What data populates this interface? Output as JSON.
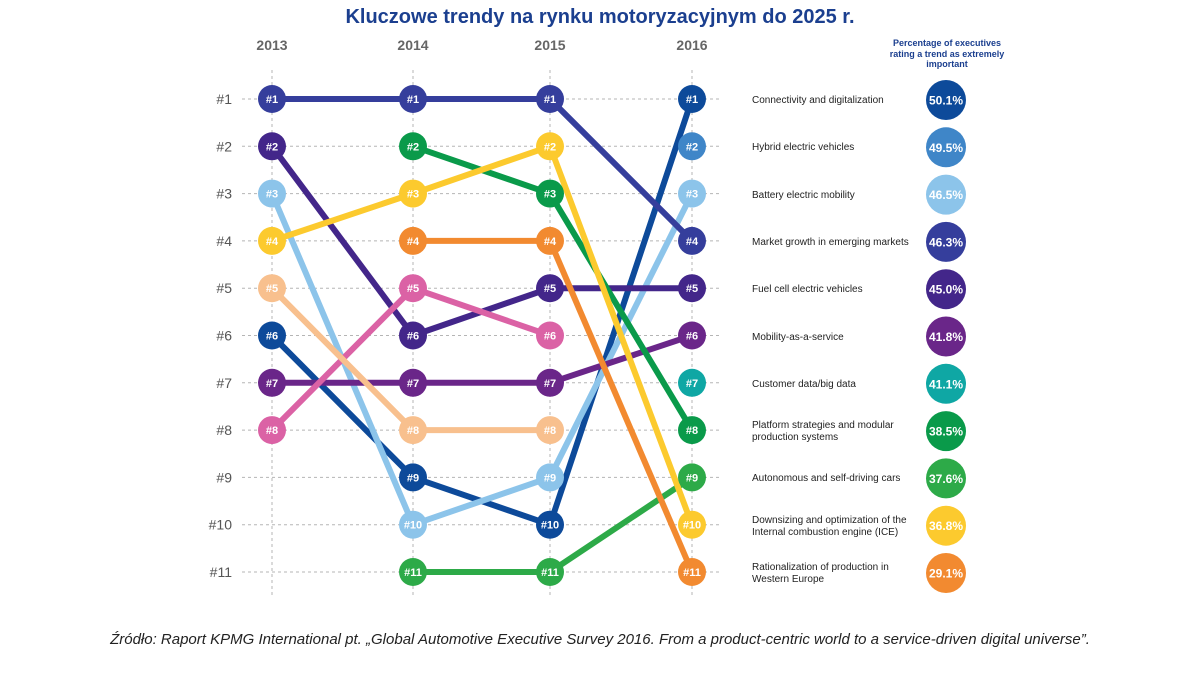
{
  "title": "Kluczowe trendy na rynku motoryzacyjnym do 2025 r.",
  "legend_header": "Percentage of executives rating a trend as extremely important",
  "source": "Źródło: Raport KPMG International pt. „Global Automotive Executive Survey 2016. From a product-centric world to a service-driven digital universe”.",
  "chart_data": {
    "type": "line",
    "subtype": "bump-chart",
    "title": "Kluczowe trendy na rynku motoryzacyjnym do 2025 r.",
    "x": [
      "2013",
      "2014",
      "2015",
      "2016"
    ],
    "y_ticks": [
      "#1",
      "#2",
      "#3",
      "#4",
      "#5",
      "#6",
      "#7",
      "#8",
      "#9",
      "#10",
      "#11"
    ],
    "ylim": [
      1,
      11
    ],
    "y_inverted": true,
    "grid": true,
    "legend_title": "Percentage of executives rating a trend as extremely important",
    "legend_position": "right",
    "series": [
      {
        "name": "Connectivity and digitalization",
        "ranks": [
          6,
          9,
          10,
          1
        ],
        "pct_2016": "50.1%",
        "color": "#0d4a9a"
      },
      {
        "name": "Hybrid electric vehicles",
        "ranks": [
          null,
          null,
          null,
          2
        ],
        "pct_2016": "49.5%",
        "color": "#3f86c8"
      },
      {
        "name": "Battery electric mobility",
        "ranks": [
          3,
          10,
          9,
          3
        ],
        "pct_2016": "46.5%",
        "color": "#8cc4ea"
      },
      {
        "name": "Market growth in emerging markets",
        "ranks": [
          1,
          1,
          1,
          4
        ],
        "pct_2016": "46.3%",
        "color": "#353e9c"
      },
      {
        "name": "Fuel cell electric vehicles",
        "ranks": [
          2,
          6,
          5,
          5
        ],
        "pct_2016": "45.0%",
        "color": "#43268a"
      },
      {
        "name": "Mobility-as-a-service",
        "ranks": [
          7,
          7,
          7,
          6
        ],
        "pct_2016": "41.8%",
        "color": "#6a2689"
      },
      {
        "name": "Customer data/big data",
        "ranks": [
          null,
          null,
          null,
          7
        ],
        "pct_2016": "41.1%",
        "color": "#0fa7a4"
      },
      {
        "name": "Platform strategies and modular production systems",
        "ranks": [
          null,
          2,
          3,
          8
        ],
        "pct_2016": "38.5%",
        "color": "#0a9a4a"
      },
      {
        "name": "Autonomous and self-driving cars",
        "ranks": [
          null,
          11,
          11,
          9
        ],
        "pct_2016": "37.6%",
        "color": "#2daa48"
      },
      {
        "name": "Downsizing and optimization of the Internal combustion engine (ICE)",
        "ranks": [
          4,
          3,
          2,
          10
        ],
        "pct_2016": "36.8%",
        "color": "#fcca2e"
      },
      {
        "name": "Rationalization of production in Western Europe",
        "ranks": [
          null,
          4,
          4,
          11
        ],
        "pct_2016": "29.1%",
        "color": "#f28a30"
      },
      {
        "name": "(unlabeled trend, pink)",
        "ranks": [
          8,
          5,
          6,
          null
        ],
        "pct_2016": null,
        "color": "#db62a5"
      },
      {
        "name": "(unlabeled trend, peach)",
        "ranks": [
          5,
          8,
          8,
          null
        ],
        "pct_2016": null,
        "color": "#f8c08e"
      }
    ]
  }
}
